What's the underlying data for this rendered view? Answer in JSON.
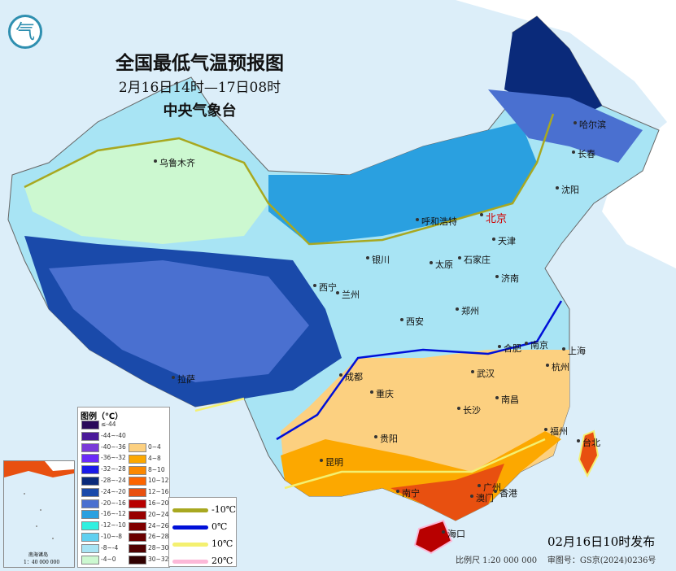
{
  "title": "全国最低气温预报图",
  "period": "2月16日14时—17日08时",
  "agency": "中央气象台",
  "logo_text": "气",
  "cities": [
    {
      "name": "乌鲁木齐",
      "capital": false
    },
    {
      "name": "哈尔滨",
      "capital": false
    },
    {
      "name": "长春",
      "capital": false
    },
    {
      "name": "沈阳",
      "capital": false
    },
    {
      "name": "呼和浩特",
      "capital": false
    },
    {
      "name": "北京",
      "capital": true
    },
    {
      "name": "天津",
      "capital": false
    },
    {
      "name": "石家庄",
      "capital": false
    },
    {
      "name": "太原",
      "capital": false
    },
    {
      "name": "银川",
      "capital": false
    },
    {
      "name": "济南",
      "capital": false
    },
    {
      "name": "西宁",
      "capital": false
    },
    {
      "name": "兰州",
      "capital": false
    },
    {
      "name": "郑州",
      "capital": false
    },
    {
      "name": "西安",
      "capital": false
    },
    {
      "name": "合肥",
      "capital": false
    },
    {
      "name": "南京",
      "capital": false
    },
    {
      "name": "上海",
      "capital": false
    },
    {
      "name": "武汉",
      "capital": false
    },
    {
      "name": "杭州",
      "capital": false
    },
    {
      "name": "成都",
      "capital": false
    },
    {
      "name": "重庆",
      "capital": false
    },
    {
      "name": "长沙",
      "capital": false
    },
    {
      "name": "南昌",
      "capital": false
    },
    {
      "name": "拉萨",
      "capital": false
    },
    {
      "name": "贵阳",
      "capital": false
    },
    {
      "name": "福州",
      "capital": false
    },
    {
      "name": "台北",
      "capital": false
    },
    {
      "name": "昆明",
      "capital": false
    },
    {
      "name": "南宁",
      "capital": false
    },
    {
      "name": "广州",
      "capital": false
    },
    {
      "name": "澳门",
      "capital": false
    },
    {
      "name": "香港",
      "capital": false
    },
    {
      "name": "海口",
      "capital": false
    }
  ],
  "legend": {
    "title": "图例（℃）",
    "cold": [
      {
        "label": "≤-44",
        "color": "#2a0a5a"
      },
      {
        "label": "-44~-40",
        "color": "#4b1a9a"
      },
      {
        "label": "-40~-36",
        "color": "#7a3ad8"
      },
      {
        "label": "-36~-32",
        "color": "#6a2af8"
      },
      {
        "label": "-32~-28",
        "color": "#1a1ae8"
      },
      {
        "label": "-28~-24",
        "color": "#0a2a7a"
      },
      {
        "label": "-24~-20",
        "color": "#1a4aaa"
      },
      {
        "label": "-20~-16",
        "color": "#4a70d0"
      },
      {
        "label": "-16~-12",
        "color": "#2aa0e0"
      },
      {
        "label": "-12~-10",
        "color": "#30f0e0"
      },
      {
        "label": "-10~-8",
        "color": "#60d0f0"
      },
      {
        "label": "-8~-4",
        "color": "#a8e4f4"
      },
      {
        "label": "-4~0",
        "color": "#ccf8d0"
      }
    ],
    "warm": [
      {
        "label": "0~4",
        "color": "#fcd080"
      },
      {
        "label": "4~8",
        "color": "#fca800"
      },
      {
        "label": "8~10",
        "color": "#fc8800"
      },
      {
        "label": "10~12",
        "color": "#fc6400"
      },
      {
        "label": "12~16",
        "color": "#e85010"
      },
      {
        "label": "16~20",
        "color": "#b80000"
      },
      {
        "label": "20~24",
        "color": "#980000"
      },
      {
        "label": "24~26",
        "color": "#800000"
      },
      {
        "label": "26~28",
        "color": "#6a0000"
      },
      {
        "label": "28~30",
        "color": "#500000"
      },
      {
        "label": "30~32",
        "color": "#300000"
      }
    ],
    "isolines": [
      {
        "label": "-10℃",
        "color": "#a8a820"
      },
      {
        "label": "0℃",
        "color": "#0010d8"
      },
      {
        "label": "10℃",
        "color": "#f4f070"
      },
      {
        "label": "20℃",
        "color": "#fcb8d8"
      }
    ]
  },
  "inset": {
    "title": "南海诸岛",
    "scale": "1：40 000 000"
  },
  "issued": "02月16日10时发布",
  "scale": "比例尺 1:20 000 000",
  "review_no": "审图号：GS京(2024)0236号"
}
